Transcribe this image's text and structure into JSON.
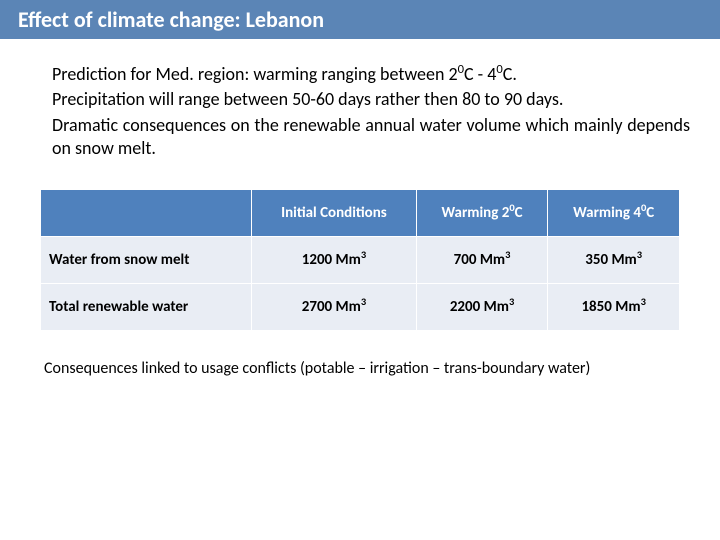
{
  "colors": {
    "title_bg": "#5b85b6",
    "title_text": "#ffffff",
    "table_header_bg": "#4f81bd",
    "table_cell_bg": "#e9edf4",
    "text": "#000000"
  },
  "title": "Effect of climate change: Lebanon",
  "bullets": [
    {
      "pre": "Prediction for Med. region: warming ranging between 2",
      "sup1": "0",
      "mid": "C - 4",
      "sup2": "0",
      "post": "C."
    },
    {
      "pre": "Precipitation will range between 50-60 days rather then 80 to 90 days.",
      "sup1": "",
      "mid": "",
      "sup2": "",
      "post": ""
    },
    {
      "pre": "Dramatic consequences on the renewable annual water volume which mainly depends on snow melt.",
      "sup1": "",
      "mid": "",
      "sup2": "",
      "post": ""
    }
  ],
  "table": {
    "headers": [
      "",
      "Initial Conditions",
      "Warming 2⁰C",
      "Warming 4⁰C"
    ],
    "rows": [
      {
        "label": "Water from snow melt",
        "cells": [
          "1200 Mm",
          "700 Mm",
          "350 Mm"
        ],
        "sup": "3"
      },
      {
        "label": "Total renewable water",
        "cells": [
          "2700 Mm",
          "2200 Mm",
          "1850 Mm"
        ],
        "sup": "3"
      }
    ]
  },
  "footnote": "Consequences linked to usage conflicts (potable – irrigation – trans-boundary water)"
}
